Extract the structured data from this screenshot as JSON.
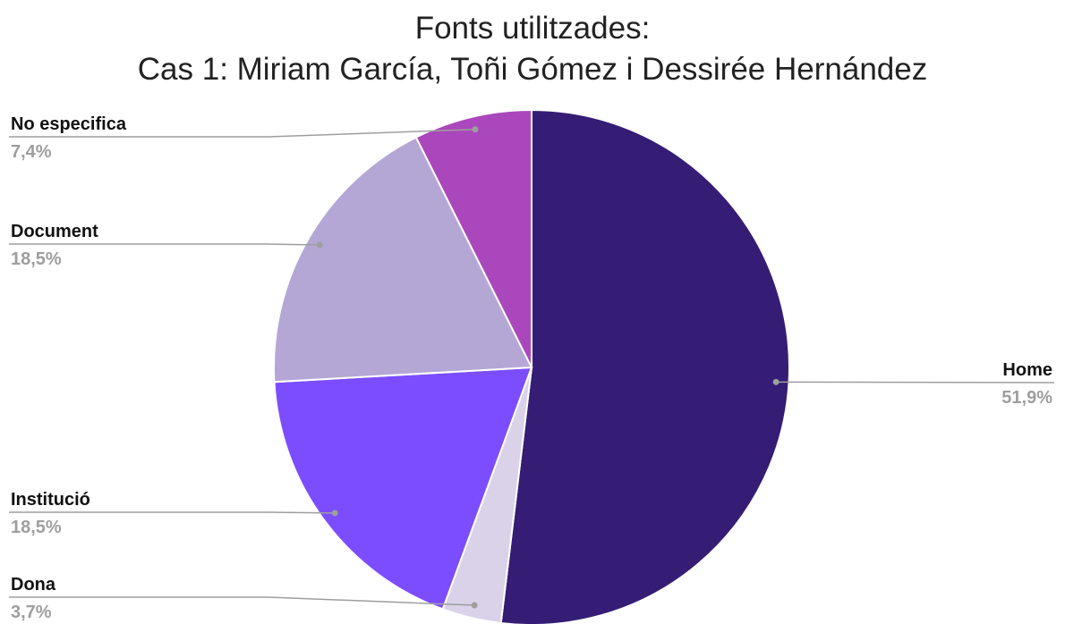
{
  "chart_data": {
    "type": "pie",
    "title": [
      "Fonts utilitzades:",
      "Cas 1: Miriam García, Toñi Gómez i Dessirée Hernández"
    ],
    "slices": [
      {
        "label": "Home",
        "value": 51.9,
        "display": "51,9%",
        "color": "#351c75",
        "label_side": "right"
      },
      {
        "label": "Dona",
        "value": 3.7,
        "display": "3,7%",
        "color": "#d9d2e9",
        "label_side": "left"
      },
      {
        "label": "Institució",
        "value": 18.5,
        "display": "18,5%",
        "color": "#7c4dff",
        "label_side": "left"
      },
      {
        "label": "Document",
        "value": 18.5,
        "display": "18,5%",
        "color": "#b4a7d6",
        "label_side": "left"
      },
      {
        "label": "No especifica",
        "value": 7.4,
        "display": "7,4%",
        "color": "#ab47bc",
        "label_side": "left"
      }
    ],
    "start_angle": "12 o'clock",
    "direction": "clockwise",
    "legend": "none (leader-line labels)"
  }
}
